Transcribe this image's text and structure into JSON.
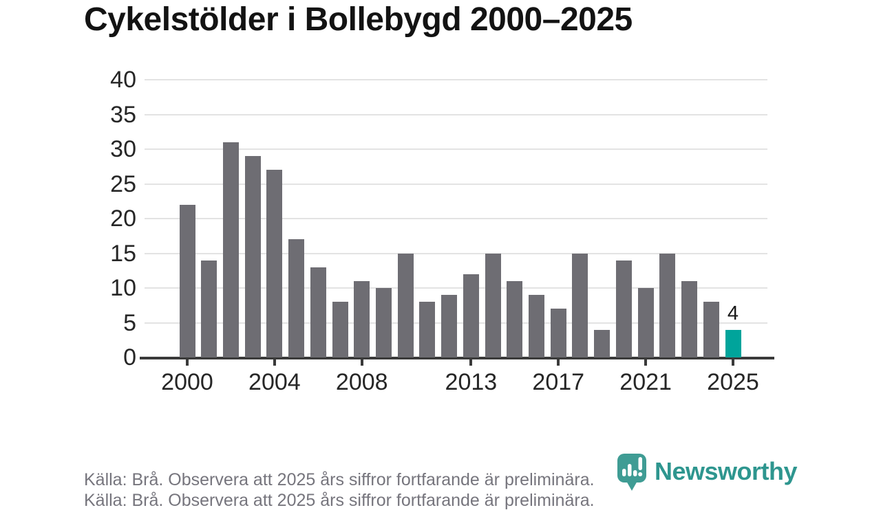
{
  "title": "Cykelstölder i Bollebygd 2000–2025",
  "footer": {
    "source_note": "Källa: Brå. Observera att 2025 års siffror fortfarande är preliminära."
  },
  "logo": {
    "wordmark": "Newsworthy",
    "icon": "bar-chart-pin-icon",
    "teal": "#2e968f"
  },
  "colors": {
    "background": "#ffffff",
    "bar_gray": "#6e6d73",
    "highlight_teal": "#00a49b",
    "gridline": "#e3e3e3",
    "axis": "#3a3a3a",
    "tick_text": "#262626",
    "title_text": "#131313",
    "muted_text": "#76757d"
  },
  "chart_data": {
    "type": "bar",
    "title": "Cykelstölder i Bollebygd 2000–2025",
    "xlabel": "",
    "ylabel": "",
    "categories": [
      "2000",
      "2001",
      "2002",
      "2003",
      "2004",
      "2005",
      "2006",
      "2007",
      "2008",
      "2009",
      "2010",
      "2011",
      "2012",
      "2013",
      "2014",
      "2015",
      "2016",
      "2017",
      "2018",
      "2019",
      "2020",
      "2021",
      "2022",
      "2023",
      "2024",
      "2025"
    ],
    "values": [
      22,
      14,
      31,
      29,
      27,
      17,
      13,
      8,
      11,
      10,
      15,
      8,
      9,
      12,
      15,
      11,
      9,
      7,
      15,
      4,
      14,
      10,
      15,
      11,
      8,
      4
    ],
    "ylim": [
      0,
      40
    ],
    "yticks": [
      0,
      5,
      10,
      15,
      20,
      25,
      30,
      35,
      40
    ],
    "xticks": [
      {
        "label": "2000",
        "index": 0
      },
      {
        "label": "2004",
        "index": 4
      },
      {
        "label": "2008",
        "index": 8
      },
      {
        "label": "2013",
        "index": 13
      },
      {
        "label": "2017",
        "index": 17
      },
      {
        "label": "2021",
        "index": 21
      },
      {
        "label": "2025",
        "index": 25
      }
    ],
    "bar_color": "#6e6d73",
    "highlight_index": 25,
    "highlight_color": "#00a49b",
    "value_labels": [
      {
        "index": 25,
        "text": "4"
      }
    ],
    "grid": "horizontal",
    "legend": "none"
  }
}
